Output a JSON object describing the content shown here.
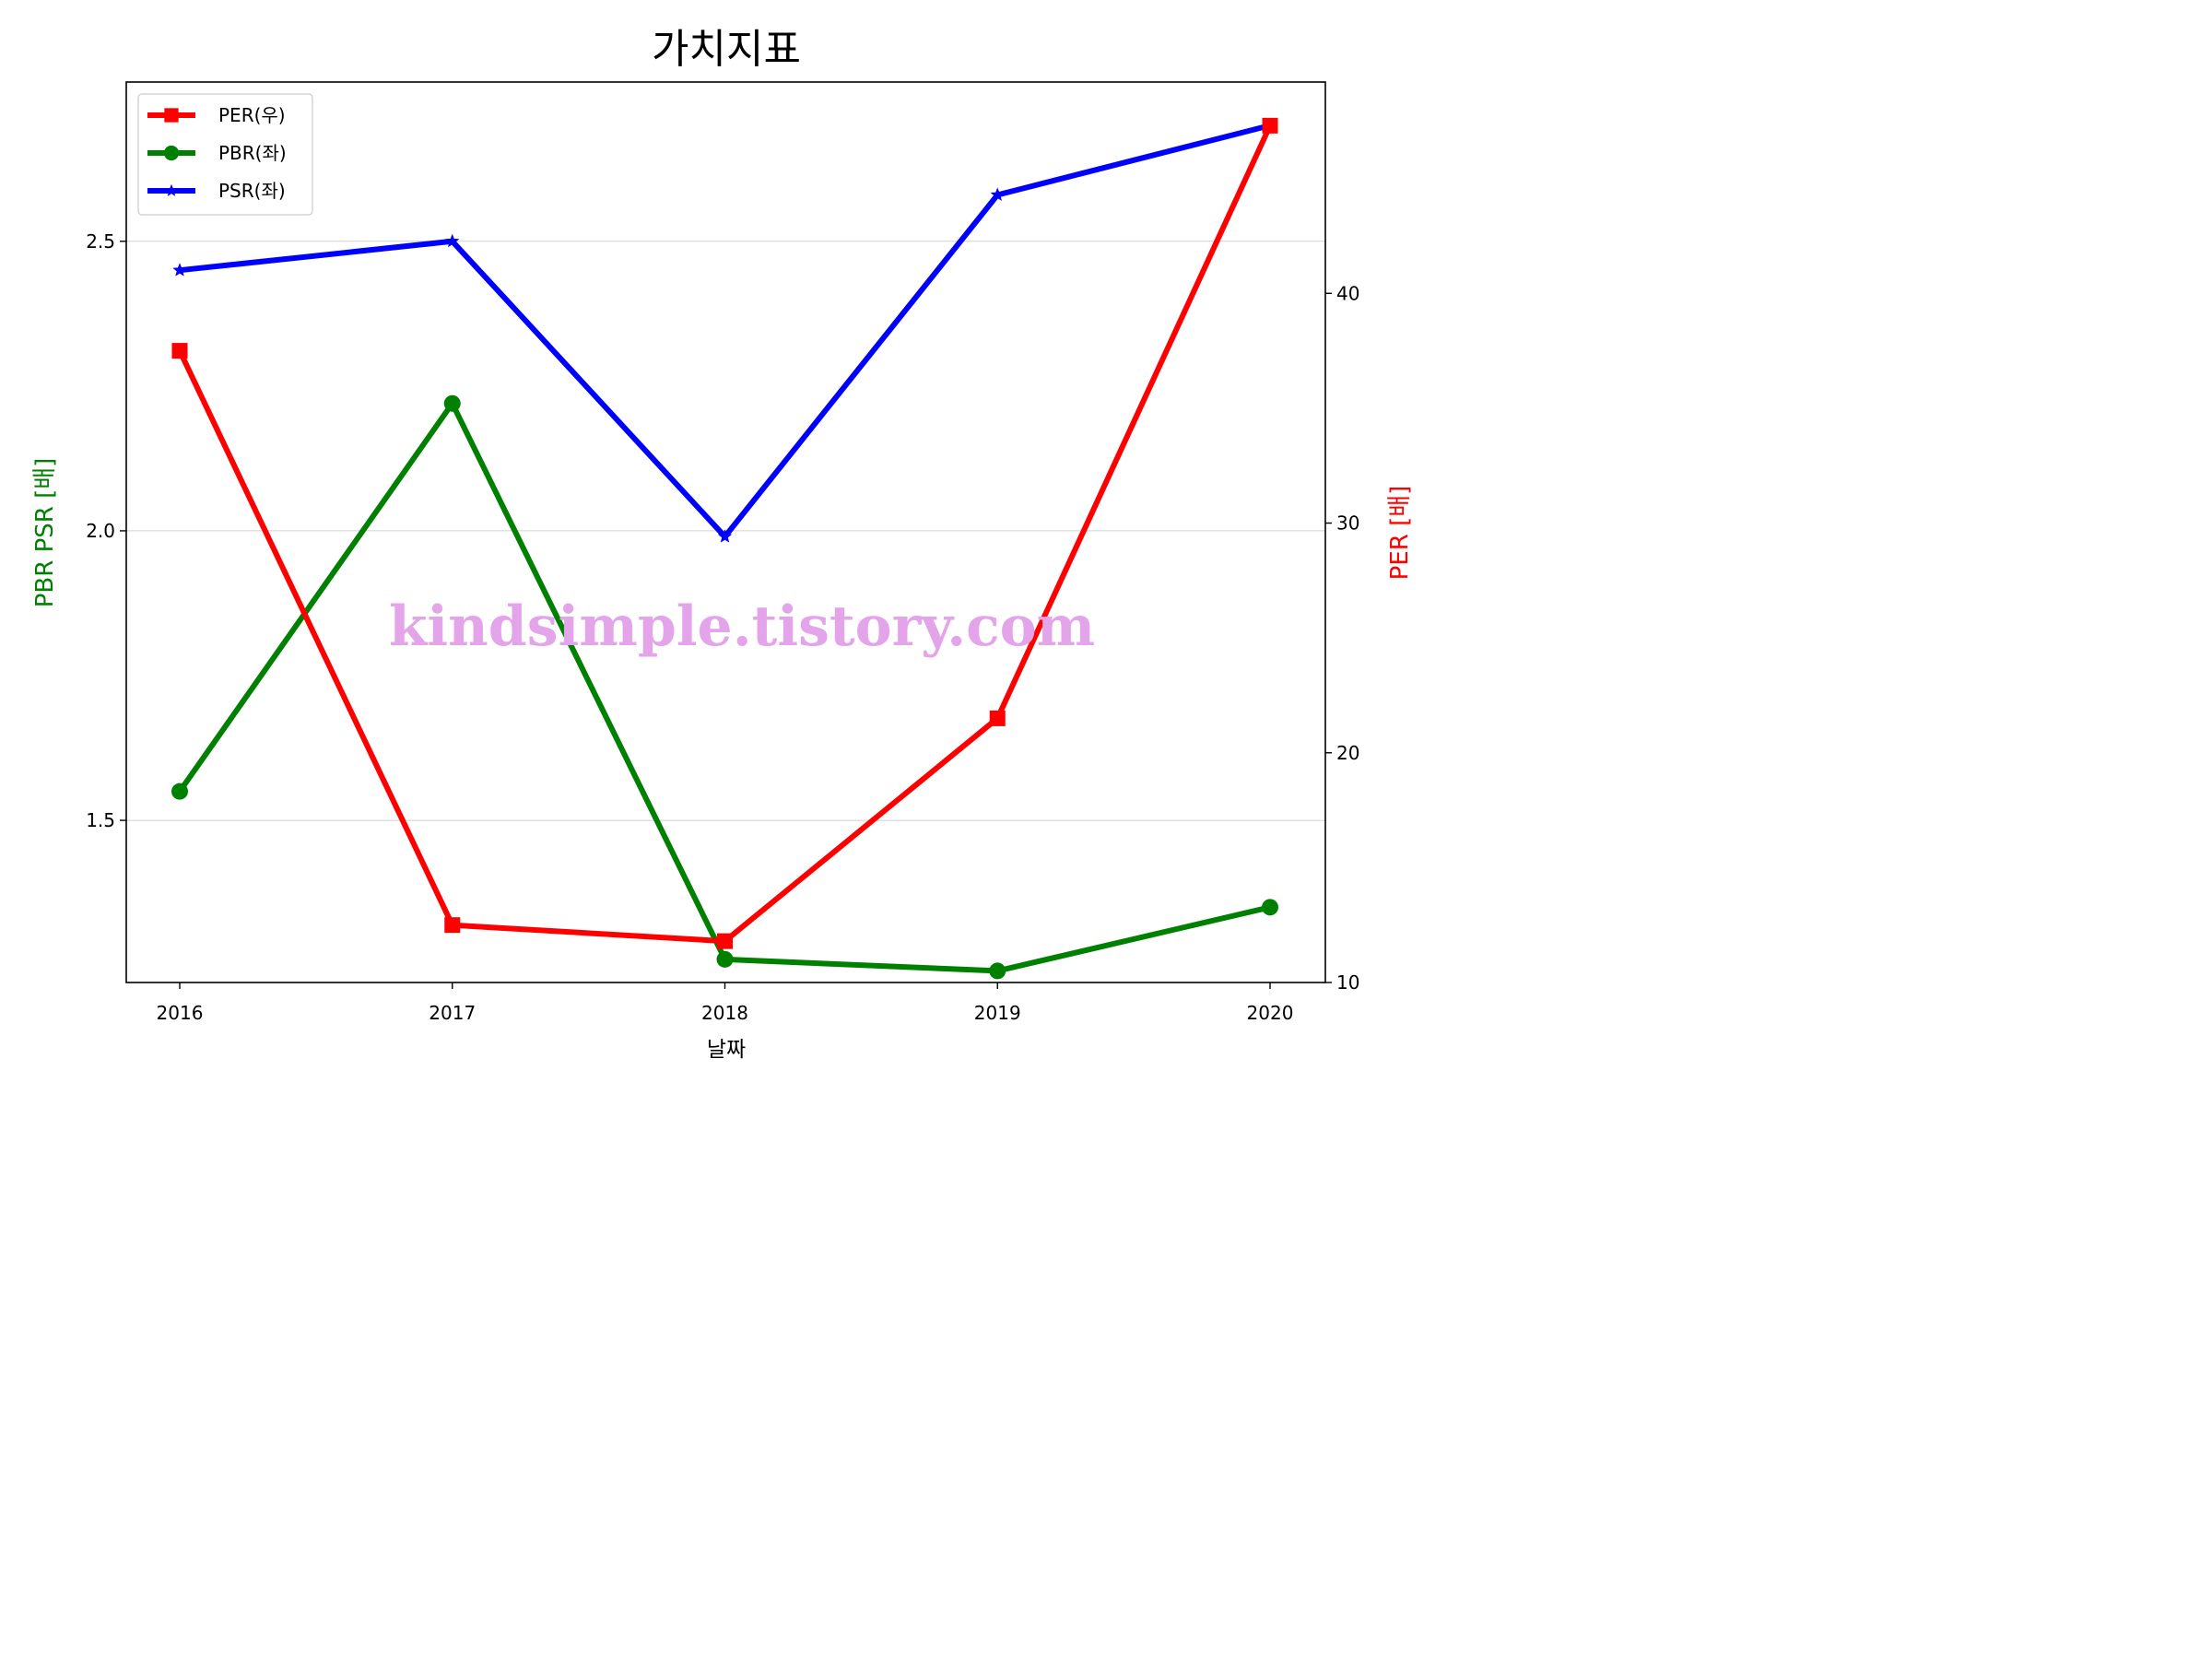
{
  "chart_data": {
    "type": "line",
    "title": "가치지표",
    "xlabel": "날짜",
    "ylabel_left": "PBR PSR [배]",
    "ylabel_right": "PER [배]",
    "categories": [
      "2016",
      "2017",
      "2018",
      "2019",
      "2020"
    ],
    "ylim_left": [
      1.22,
      2.775
    ],
    "ylim_right": [
      10,
      49.2
    ],
    "yticks_left": [
      "1.5",
      "2.0",
      "2.5"
    ],
    "yticks_right": [
      "10",
      "20",
      "30",
      "40"
    ],
    "grid": "horizontal",
    "legend_position": "top-left",
    "series": [
      {
        "name": "PER(우)",
        "axis": "right",
        "color": "#ff0000",
        "marker": "square",
        "values": [
          37.5,
          12.5,
          11.8,
          21.5,
          47.3
        ]
      },
      {
        "name": "PBR(좌)",
        "axis": "left",
        "color": "#008000",
        "marker": "circle",
        "values": [
          1.55,
          2.22,
          1.26,
          1.24,
          1.35
        ]
      },
      {
        "name": "PSR(좌)",
        "axis": "left",
        "color": "#0000ff",
        "marker": "star",
        "values": [
          2.45,
          2.5,
          1.99,
          2.58,
          2.7
        ]
      }
    ],
    "watermark": "kindsimple.tistory.com"
  }
}
